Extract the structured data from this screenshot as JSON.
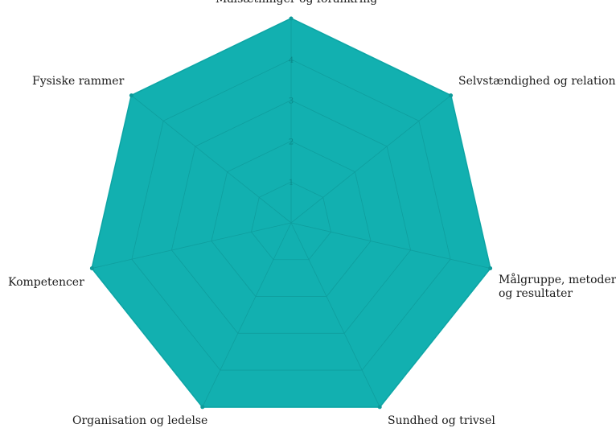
{
  "chart_data": {
    "type": "radar",
    "title": "",
    "categories": [
      "Målsætninger og forankring",
      "Selvstændighed og relationer",
      "Målgruppe, metoder og resultater",
      "Sundhed og trivsel",
      "Organisation og ledelse",
      "Kompetencer",
      "Fysiske rammer"
    ],
    "series": [
      {
        "values": [
          5,
          5,
          5,
          5,
          5,
          5,
          5
        ],
        "color": "#12b0b0"
      }
    ],
    "rlim": [
      0,
      5
    ],
    "ticks": [
      "1",
      "2",
      "3",
      "4"
    ],
    "grid": true,
    "legend": "none"
  }
}
